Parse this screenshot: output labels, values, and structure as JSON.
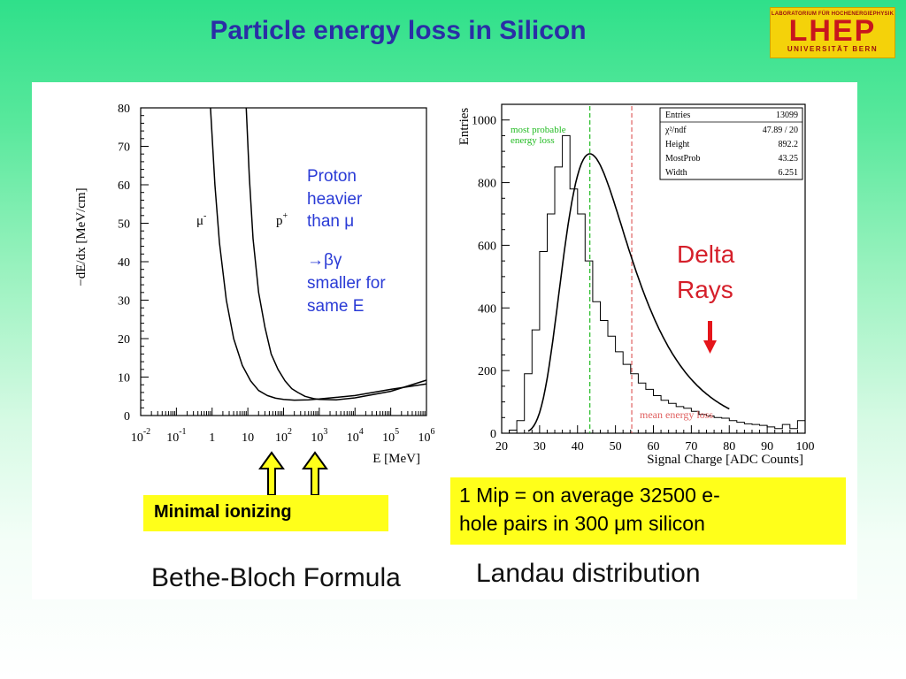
{
  "slide": {
    "title": "Particle energy loss in Silicon",
    "logo": {
      "top_text": "LABORATORIUM FÜR HOCHENERGIEPHYSIK",
      "main_text": "LHEP",
      "bottom_text": "UNIVERSITÄT BERN",
      "bg_color": "#f4d20a",
      "text_color": "#c8161d"
    },
    "title_color": "#2a2ea6"
  },
  "left_plot": {
    "ylabel": "−dE/dx [MeV/cm]",
    "xlabel": "E [MeV]",
    "curve_labels": {
      "muon": "μ",
      "muon_sup": "-",
      "proton": "p",
      "proton_sup": "+"
    },
    "annotation_lines": [
      "Proton",
      "heavier",
      "than μ",
      "→βγ",
      "smaller for",
      "same E"
    ],
    "box_text": "Minimal ionizing",
    "caption": "Bethe-Bloch Formula"
  },
  "right_plot": {
    "ylabel": "Entries",
    "xlabel": "Signal Charge [ADC Counts]",
    "label_mpv": [
      "most probable",
      "energy loss"
    ],
    "label_mean": "mean energy loss",
    "delta_lines": [
      "Delta",
      "Rays"
    ],
    "stats": [
      {
        "key": "Entries",
        "value": "13099"
      },
      {
        "key": "χ²/ndf",
        "value": "47.89 / 20"
      },
      {
        "key": "Height",
        "value": "892.2"
      },
      {
        "key": "MostProb",
        "value": "43.25"
      },
      {
        "key": "Width",
        "value": "6.251"
      }
    ],
    "mip_lines": [
      "1 Mip = on average 32500    e-",
      "hole pairs in 300 μm silicon"
    ],
    "caption": "Landau distribution"
  },
  "chart_data": [
    {
      "type": "line",
      "title": "Bethe-Bloch Formula",
      "xlabel": "E [MeV]",
      "ylabel": "−dE/dx [MeV/cm]",
      "x_scale": "log",
      "xlim": [
        0.01,
        1000000
      ],
      "ylim": [
        0,
        80
      ],
      "x_ticks": [
        {
          "base": "10",
          "exp": "-2"
        },
        {
          "base": "10",
          "exp": "-1"
        },
        {
          "base": "1",
          "exp": ""
        },
        {
          "base": "10",
          "exp": ""
        },
        {
          "base": "10",
          "exp": "2"
        },
        {
          "base": "10",
          "exp": "3"
        },
        {
          "base": "10",
          "exp": "4"
        },
        {
          "base": "10",
          "exp": "5"
        },
        {
          "base": "10",
          "exp": "6"
        }
      ],
      "y_ticks": [
        0,
        10,
        20,
        30,
        40,
        50,
        60,
        70,
        80
      ],
      "series": [
        {
          "name": "μ-",
          "x": [
            0.9,
            1.2,
            1.6,
            2.5,
            4,
            7,
            12,
            20,
            35,
            60,
            100,
            200,
            500,
            1000,
            10000,
            100000,
            1000000
          ],
          "y": [
            80,
            60,
            45,
            30,
            20,
            13,
            9,
            6.5,
            5.2,
            4.5,
            4.2,
            4.0,
            4.1,
            4.3,
            5.2,
            6.8,
            8.2
          ]
        },
        {
          "name": "p+",
          "x": [
            9,
            11,
            14,
            20,
            30,
            45,
            70,
            110,
            170,
            250,
            400,
            700,
            1000,
            3000,
            10000,
            100000,
            1000000
          ],
          "y": [
            80,
            62,
            46,
            32,
            23,
            16,
            12,
            9,
            7,
            6,
            5,
            4.4,
            4.2,
            4.1,
            4.6,
            6.3,
            9.2
          ]
        }
      ]
    },
    {
      "type": "histogram",
      "title": "Landau distribution",
      "xlabel": "Signal Charge [ADC Counts]",
      "ylabel": "Entries",
      "xlim": [
        20,
        100
      ],
      "ylim": [
        0,
        1050
      ],
      "x_ticks": [
        20,
        30,
        40,
        50,
        60,
        70,
        80,
        90,
        100
      ],
      "y_ticks": [
        0,
        200,
        400,
        600,
        800,
        1000
      ],
      "bin_width": 2,
      "bin_start": 20,
      "counts": [
        0,
        10,
        40,
        190,
        330,
        580,
        700,
        850,
        950,
        780,
        700,
        550,
        420,
        360,
        310,
        260,
        220,
        190,
        160,
        140,
        120,
        105,
        95,
        85,
        80,
        70,
        60,
        55,
        50,
        48,
        40,
        35,
        30,
        28,
        25,
        20,
        15,
        28,
        15,
        40
      ],
      "fit": {
        "name": "Landau fit",
        "height": 892.2,
        "most_prob": 43.25,
        "width": 6.251
      },
      "markers": [
        {
          "name": "most probable energy loss",
          "x": 43.25,
          "color": "#22bb22"
        },
        {
          "name": "mean energy loss",
          "x": 54.3,
          "color": "#e06060"
        }
      ]
    }
  ]
}
